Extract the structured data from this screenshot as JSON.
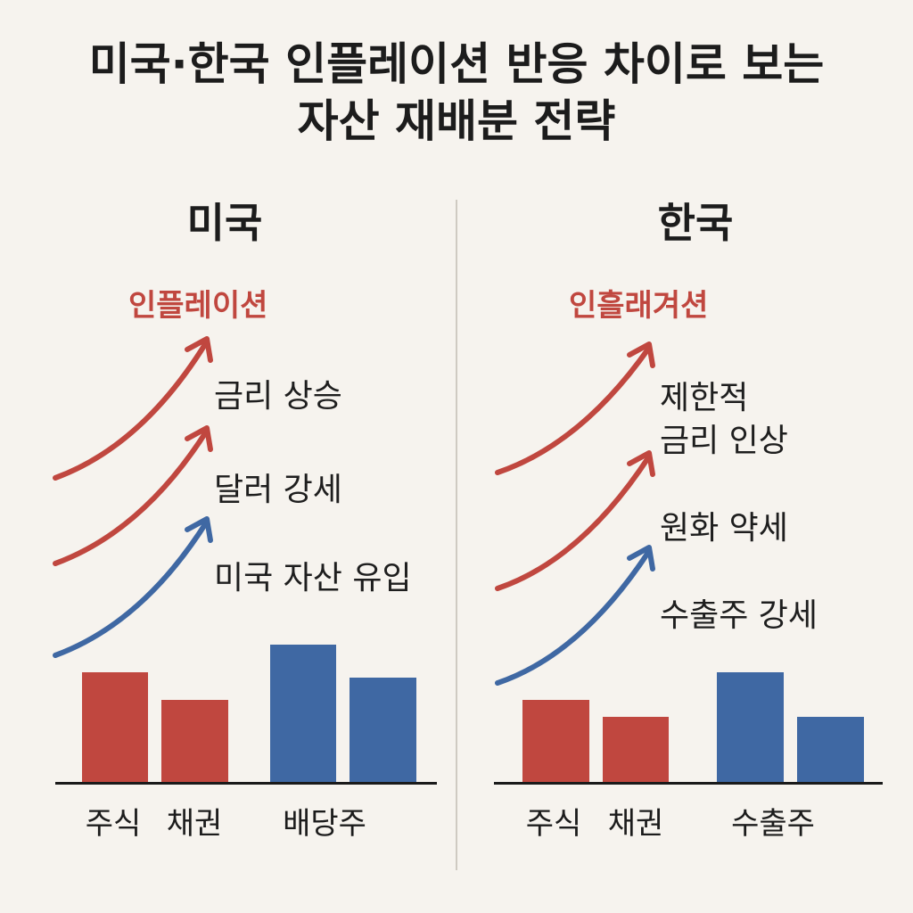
{
  "title": {
    "line1": "미국·한국 인플레이션 반응 차이로 보는",
    "line2": "자산 재배분 전략"
  },
  "colors": {
    "red": "#c0473f",
    "blue": "#3f68a3",
    "background": "#f6f3ee"
  },
  "us": {
    "heading": "미국",
    "effect": "인플레이션",
    "labels": [
      "금리 상승",
      "달러 강세",
      "미국 자산 유입"
    ],
    "arrow_colors": [
      "red",
      "red",
      "blue"
    ],
    "bars": [
      {
        "category": "주식",
        "value": 4,
        "color": "red"
      },
      {
        "category": "채권",
        "value": 3,
        "color": "red"
      },
      {
        "category": "배당주",
        "value": 5,
        "color": "blue"
      },
      {
        "category": "",
        "value": 3.8,
        "color": "blue"
      }
    ],
    "categories": [
      "주식",
      "채권",
      "배당주"
    ]
  },
  "kr": {
    "heading": "한국",
    "effect": "인흘래겨션",
    "labels_line1": "제한적",
    "labels_line2": "금리 인상",
    "labels": [
      "원화 약세",
      "수출주 강세"
    ],
    "arrow_colors": [
      "red",
      "red",
      "blue"
    ],
    "bars": [
      {
        "category": "주식",
        "value": 3,
        "color": "red"
      },
      {
        "category": "채권",
        "value": 2.4,
        "color": "red"
      },
      {
        "category": "수출주",
        "value": 4,
        "color": "blue"
      },
      {
        "category": "",
        "value": 2.4,
        "color": "blue"
      }
    ],
    "categories": [
      "주식",
      "채권",
      "수출주"
    ]
  }
}
